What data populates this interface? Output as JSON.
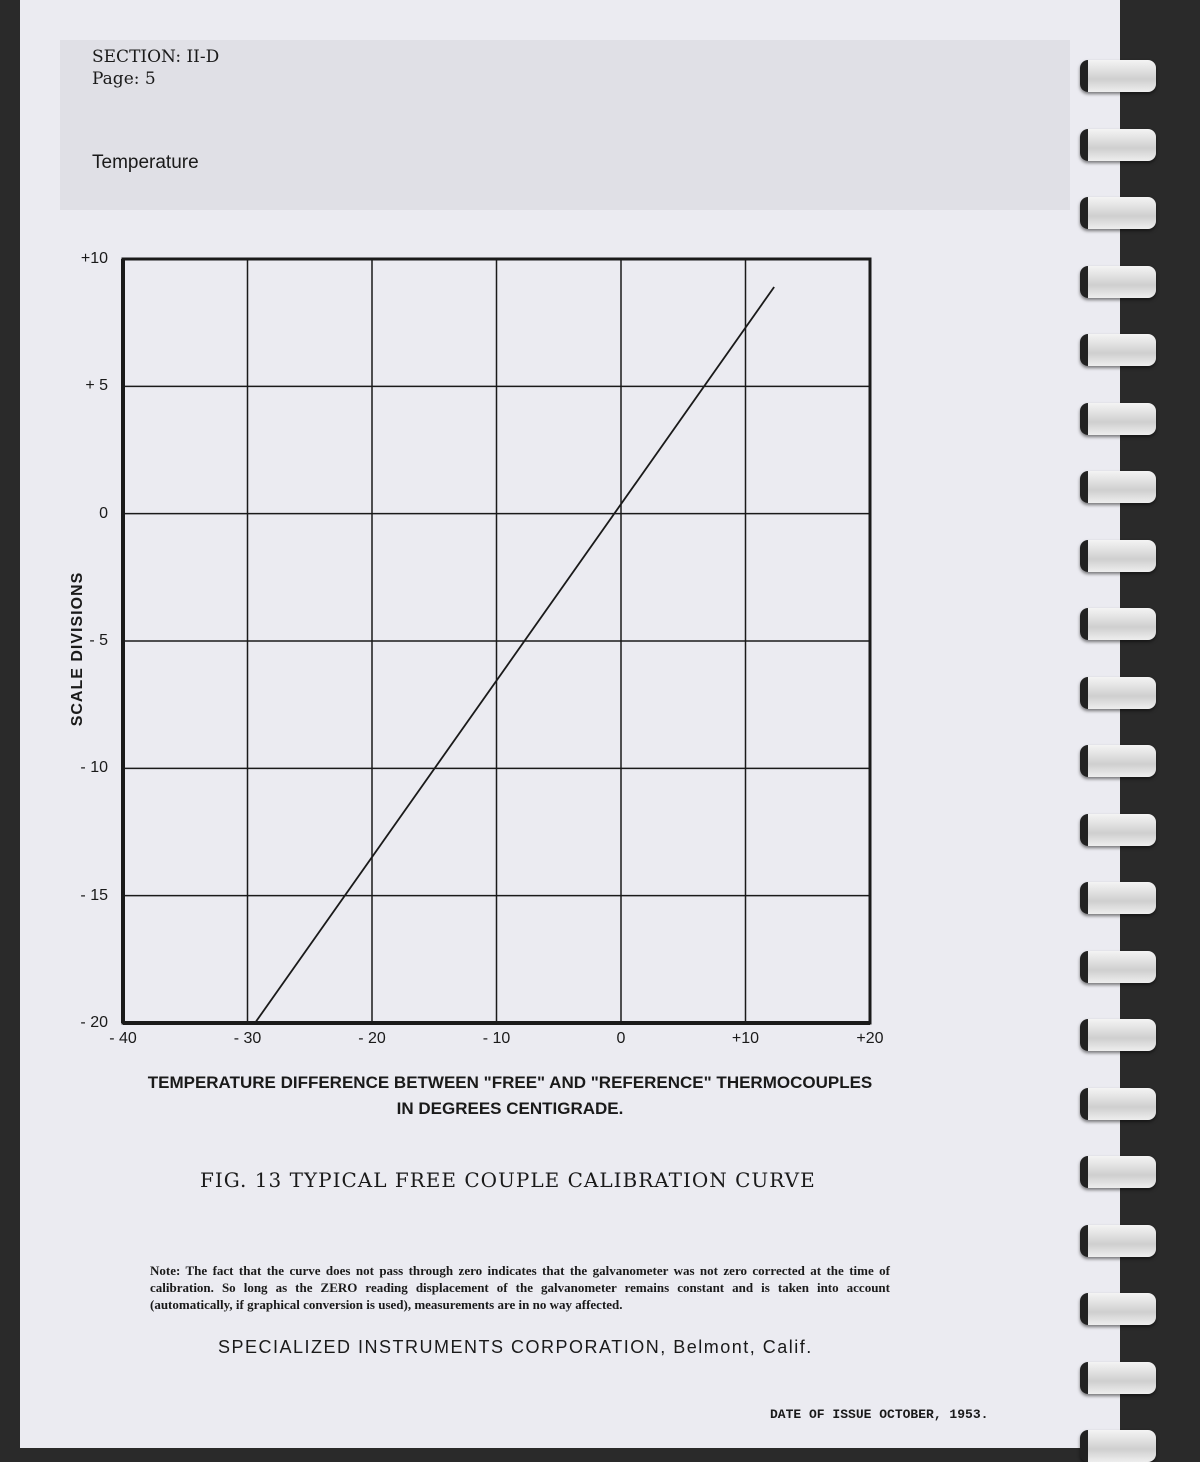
{
  "header": {
    "section": "SECTION: II-D",
    "page": "Page: 5",
    "topic": "Temperature"
  },
  "chart_data": {
    "type": "line",
    "xlabel": "TEMPERATURE DIFFERENCE BETWEEN \"FREE\" AND \"REFERENCE\" THERMOCOUPLES",
    "xlabel2": "IN DEGREES CENTIGRADE.",
    "ylabel": "SCALE DIVISIONS",
    "xlim": [
      -40,
      20
    ],
    "ylim": [
      -20,
      10
    ],
    "grid": true,
    "x_ticks": [
      -40,
      -30,
      -20,
      -10,
      0,
      10,
      20
    ],
    "x_tick_labels": [
      "- 40",
      "- 30",
      "- 20",
      "- 10",
      "0",
      "+10",
      "+20"
    ],
    "y_ticks": [
      10,
      5,
      0,
      -5,
      -10,
      -15,
      -20
    ],
    "y_tick_labels": [
      "+10",
      "+ 5",
      "0",
      "- 5",
      "- 10",
      "- 15",
      "- 20"
    ],
    "series": [
      {
        "x": [
          -29.4,
          12.3
        ],
        "y": [
          -20,
          8.9
        ]
      }
    ],
    "line_color": "#1a1a1a"
  },
  "figure_caption": "FIG. 13  TYPICAL  FREE COUPLE  CALIBRATION CURVE",
  "note": "Note: The fact that the curve does not pass through zero indicates that the galvanometer was not zero corrected at the time of calibration. So long as the ZERO reading displacement of the galvanometer remains constant and is taken into account (automatically, if graphical conversion is used), measurements are in no way affected.",
  "footer": {
    "company": "SPECIALIZED INSTRUMENTS CORPORATION, Belmont, Calif.",
    "date": "DATE OF ISSUE OCTOBER, 1953."
  }
}
